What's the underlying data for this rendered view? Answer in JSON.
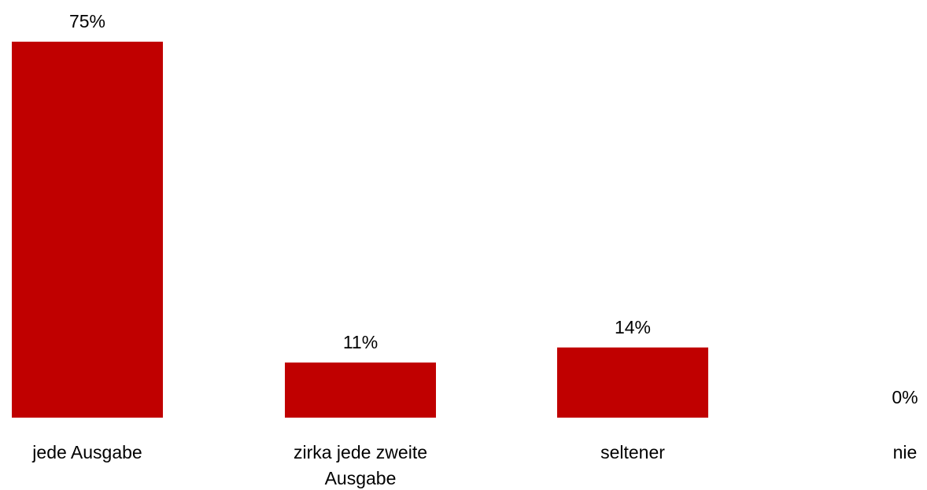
{
  "chart_data": {
    "type": "bar",
    "categories": [
      "jede Ausgabe",
      "zirka jede zweite Ausgabe",
      "seltener",
      "nie"
    ],
    "category_lines": [
      [
        "jede Ausgabe"
      ],
      [
        "zirka jede zweite",
        "Ausgabe"
      ],
      [
        "seltener"
      ],
      [
        "nie"
      ]
    ],
    "values": [
      75,
      11,
      14,
      0
    ],
    "data_labels": [
      "75%",
      "11%",
      "14%",
      "0%"
    ],
    "unit": "%",
    "bar_color": "#c00000",
    "grid": false,
    "legend": "none",
    "ylim": [
      0,
      75
    ]
  }
}
